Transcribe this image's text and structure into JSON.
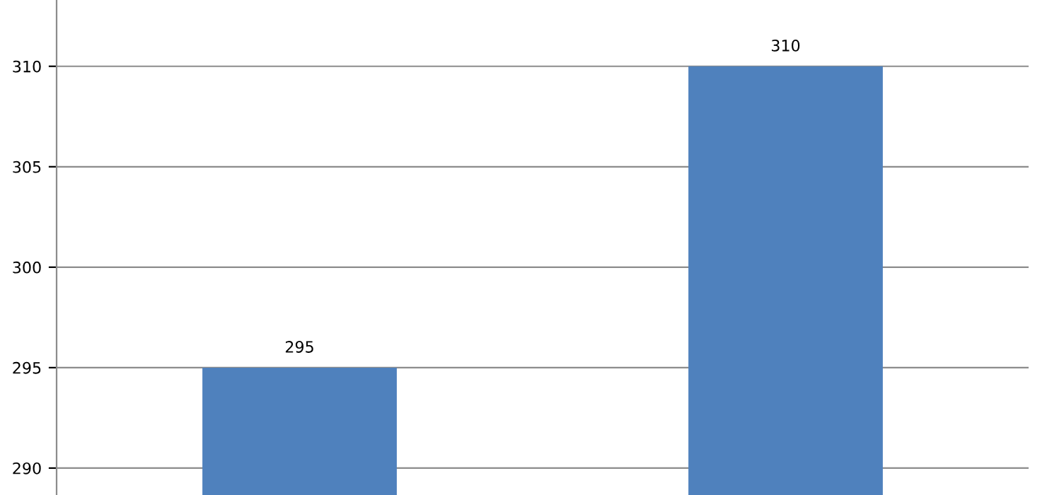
{
  "chart_data": {
    "type": "bar",
    "categories": [
      null,
      null
    ],
    "values": [
      295,
      310
    ],
    "color": "#4f81bd",
    "ylim": [
      288.66,
      313.3
    ],
    "yticks": [
      290,
      295,
      300,
      305,
      310
    ],
    "grid": "y",
    "data_labels": true,
    "tick_labels": "y"
  }
}
